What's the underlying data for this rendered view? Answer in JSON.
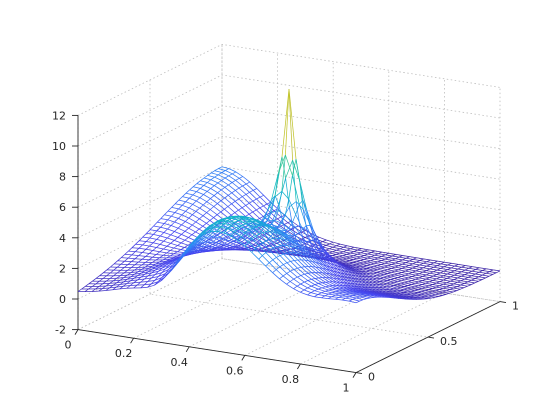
{
  "chart_data": {
    "type": "mesh",
    "title": "",
    "xlabel": "",
    "ylabel": "",
    "zlabel": "",
    "xlim": [
      0,
      1
    ],
    "ylim": [
      0,
      1
    ],
    "zlim": [
      -2,
      12
    ],
    "x_ticks": [
      "0",
      "0.2",
      "0.4",
      "0.6",
      "0.8",
      "1"
    ],
    "y_ticks": [
      "0",
      "0.5",
      "1"
    ],
    "z_ticks": [
      "-2",
      "0",
      "2",
      "4",
      "6",
      "8",
      "10",
      "12"
    ],
    "grid": true,
    "colormap": "parula",
    "colormap_stops": [
      "#3e26a8",
      "#4646f0",
      "#2e87f7",
      "#10b8c8",
      "#47cb8a",
      "#bdbf31",
      "#f9fb15"
    ],
    "mesh_resolution": 40,
    "surface": {
      "description_points": [
        {
          "x": 0.0,
          "y": 0.0,
          "z": 0.0
        },
        {
          "x": 0.05,
          "y": 1.0,
          "z": 4.0
        },
        {
          "x": 0.5,
          "y": 0.5,
          "z": 12.5
        },
        {
          "x": 0.5,
          "y": 0.0,
          "z": 5.5
        },
        {
          "x": 1.0,
          "y": 0.0,
          "z": 2.6
        },
        {
          "x": 1.0,
          "y": 1.0,
          "z": 0.3
        },
        {
          "x": 0.6,
          "y": 1.0,
          "z": 0.2
        }
      ]
    }
  }
}
